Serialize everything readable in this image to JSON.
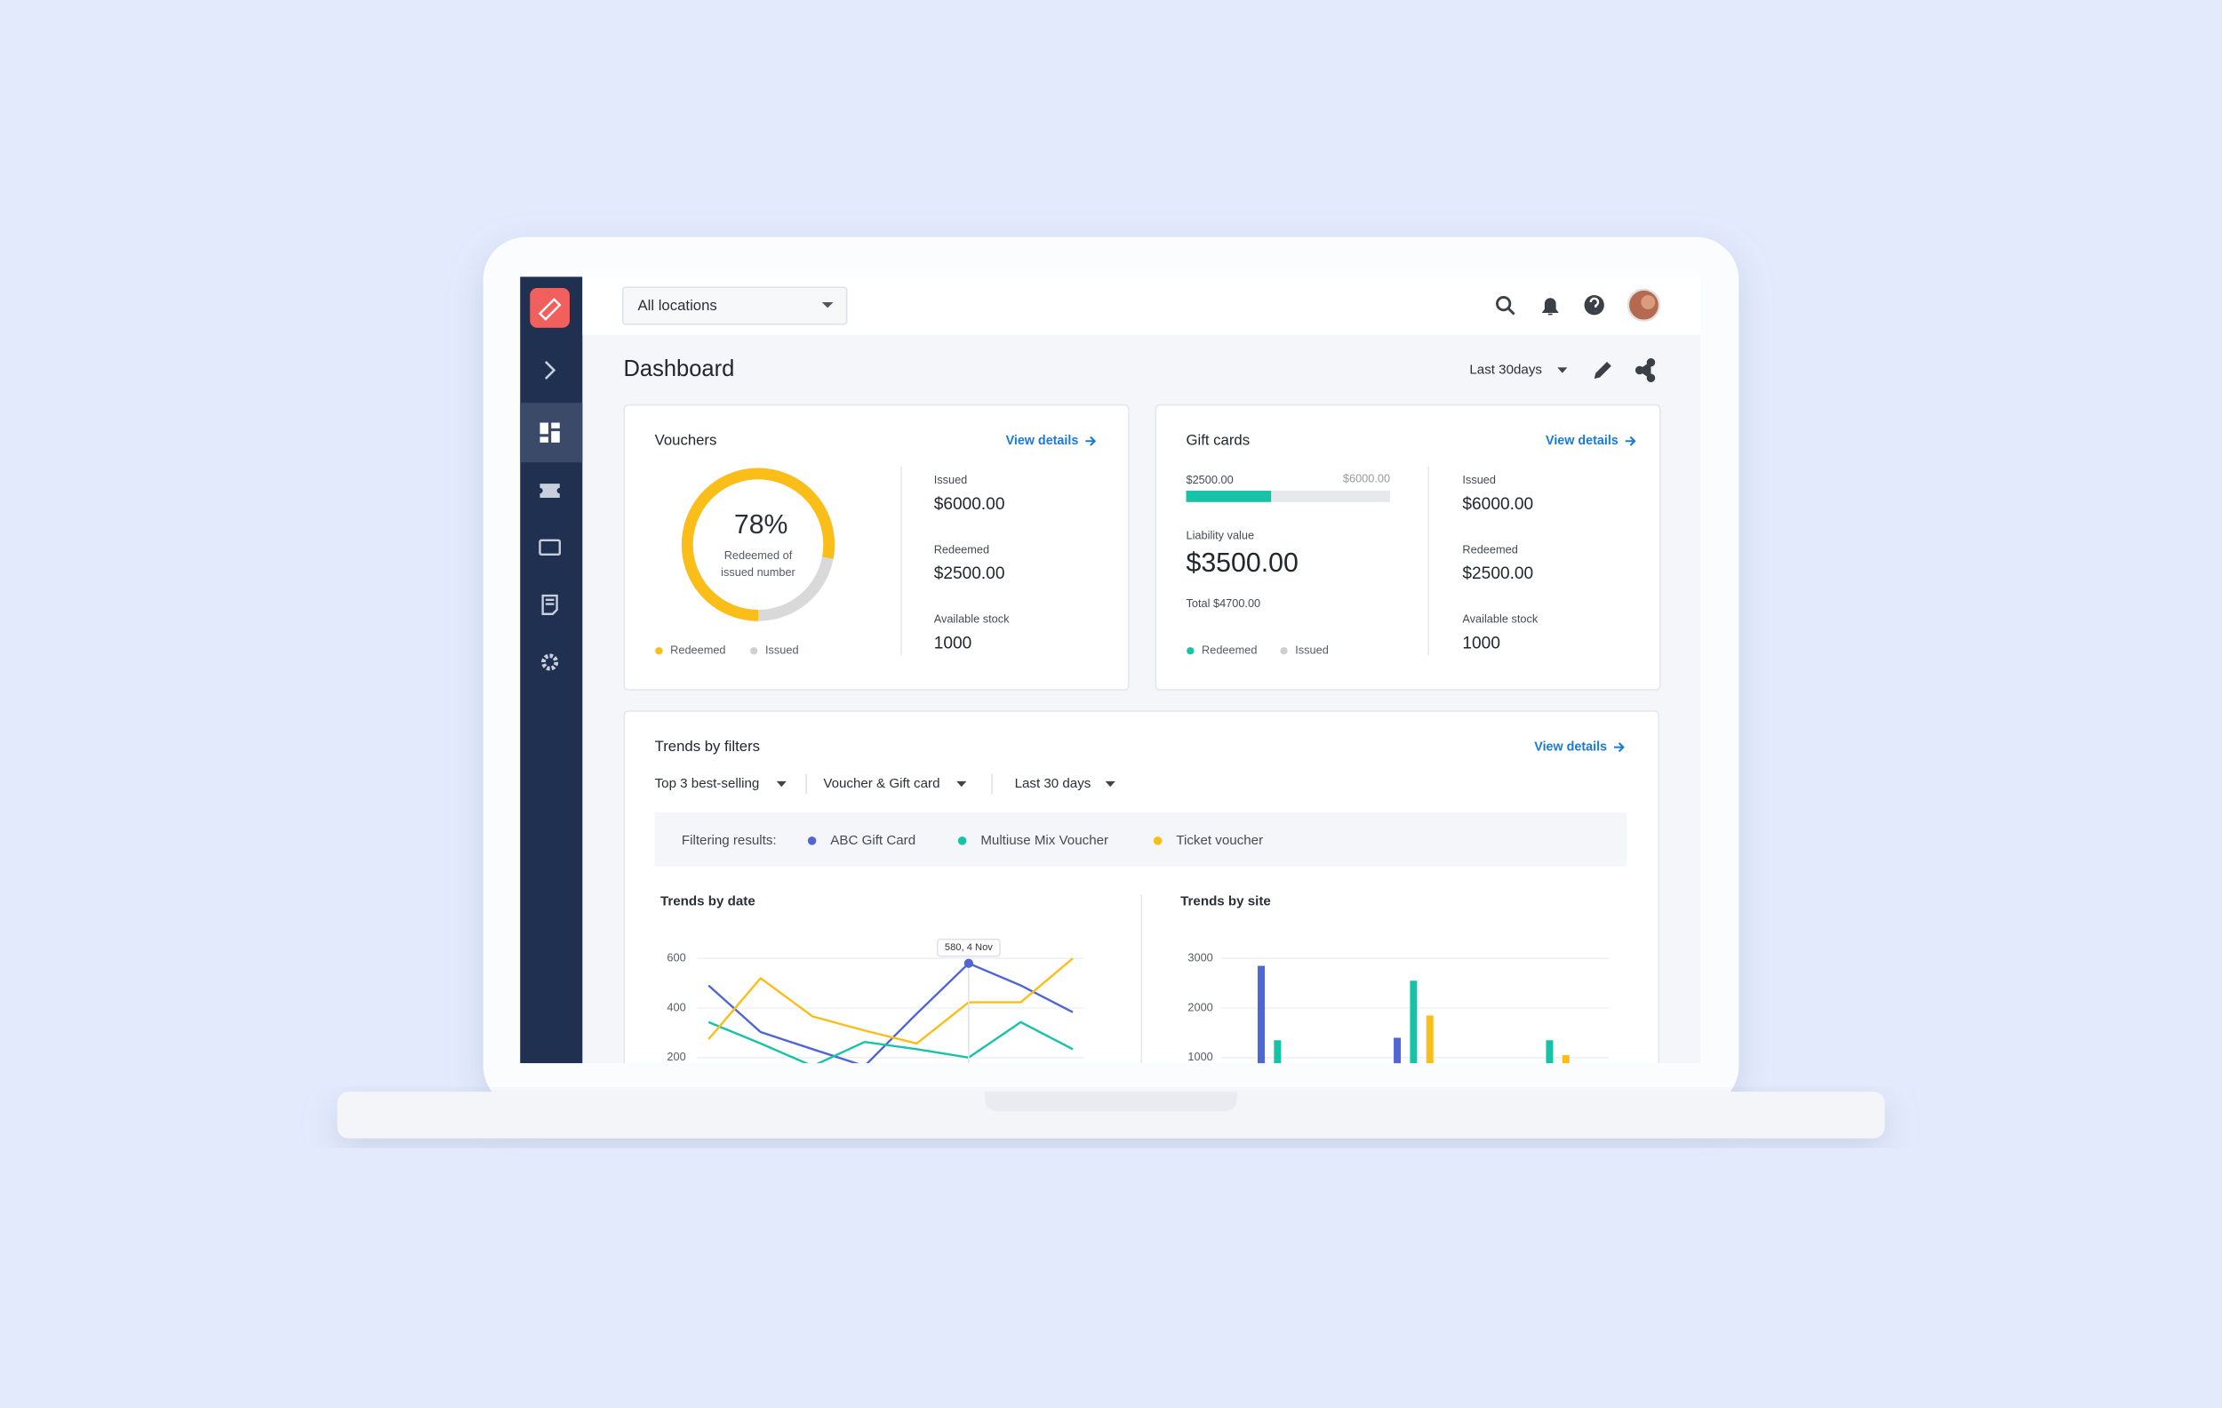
{
  "topbar": {
    "location": "All locations"
  },
  "page": {
    "title": "Dashboard",
    "range": "Last 30days"
  },
  "vouchers": {
    "title": "Vouchers",
    "link": "View details",
    "percent": {
      "value": 78,
      "label": "78%"
    },
    "caption": [
      "Redeemed of",
      "issued number"
    ],
    "legend": [
      "Redeemed",
      "Issued"
    ],
    "stats": [
      {
        "label": "Issued",
        "value": "$6000.00"
      },
      {
        "label": "Redeemed",
        "value": "$2500.00"
      },
      {
        "label": "Available stock",
        "value": "1000"
      }
    ]
  },
  "gift_cards": {
    "title": "Gift cards",
    "link": "View details",
    "bar_value": "$2500.00",
    "bar_max": "$6000.00",
    "liability_label": "Liability value",
    "liability": "$3500.00",
    "total": "Total $4700.00",
    "legend": [
      "Redeemed",
      "Issued"
    ],
    "stats": [
      {
        "label": "Issued",
        "value": "$6000.00"
      },
      {
        "label": "Redeemed",
        "value": "$2500.00"
      },
      {
        "label": "Available stock",
        "value": "1000"
      }
    ]
  },
  "trends": {
    "title": "Trends by filters",
    "link": "View details",
    "filters": [
      "Top 3 best-selling",
      "Voucher & Gift card",
      "Last 30 days"
    ],
    "results_label": "Filtering results:",
    "by_date": {
      "type": "line",
      "title": "Trends by date",
      "ylim": [
        0,
        600
      ],
      "yticks": [
        600,
        400,
        200
      ],
      "grid": true,
      "tooltip": "580, 4 Nov",
      "series": [
        {
          "name": "ABC Gift Card",
          "color": "#5065d6",
          "values": [
            491,
            303,
            234,
            166,
            377,
            580,
            491,
            383
          ]
        },
        {
          "name": "Multiuse Mix Voucher",
          "color": "#17c3a6",
          "values": [
            343,
            257,
            166,
            263,
            234,
            200,
            343,
            234
          ]
        },
        {
          "name": "Ticket voucher",
          "color": "#fbbd18",
          "values": [
            274,
            520,
            366,
            309,
            257,
            423,
            423,
            600
          ]
        }
      ]
    },
    "by_site": {
      "type": "bar",
      "title": "Trends by site",
      "ylim": [
        0,
        3000
      ],
      "yticks": [
        3000,
        2000,
        1000
      ],
      "grid": true,
      "values": [
        [
          2850,
          1400,
          null
        ],
        [
          1350,
          2550,
          1350
        ],
        [
          null,
          1850,
          1050
        ]
      ]
    }
  }
}
